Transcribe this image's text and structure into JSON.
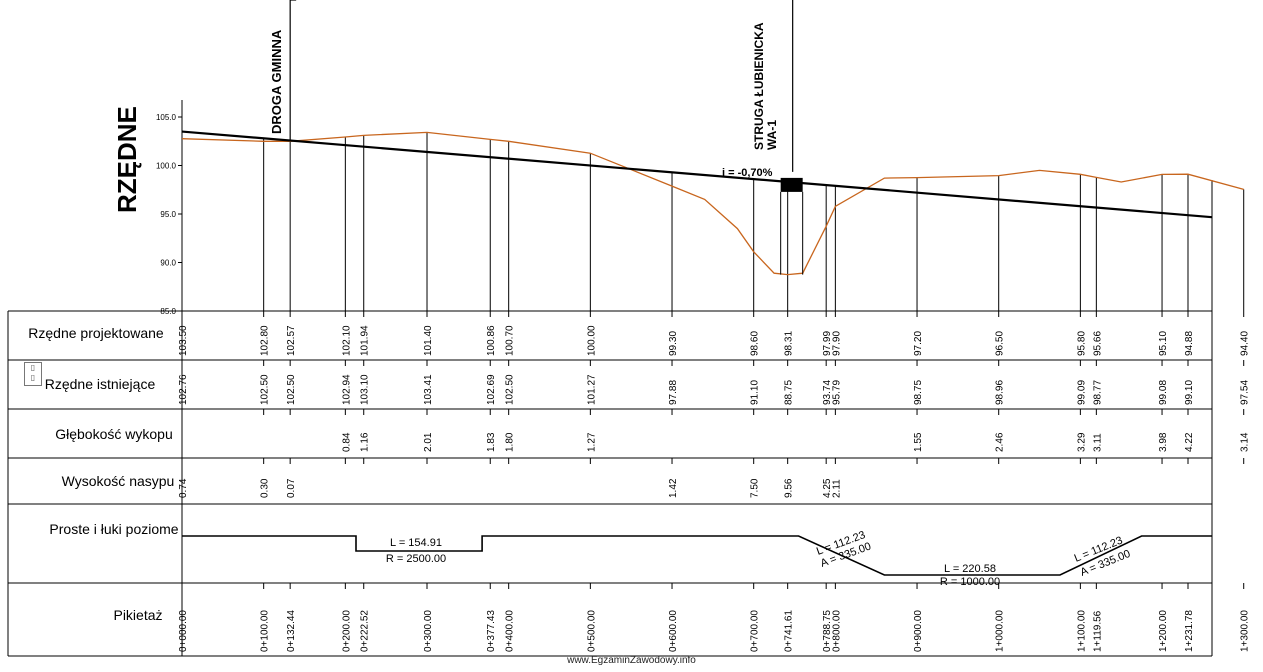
{
  "ylabel": "RZĘDNE",
  "y_ticks": [
    "105.0",
    "100.0",
    "95.0",
    "90.0",
    "85.0"
  ],
  "landmarks": {
    "road": "DROGA GMINNA",
    "stream": "STRUGA ŁUBIENICKA",
    "culvert": "WA-1"
  },
  "slope_label": "i = -0,70%",
  "rows": {
    "projected": "Rzędne projektowane",
    "existing": "Rzędne istniejące",
    "cut": "Głębokość wykopu",
    "fill": "Wysokość nasypu",
    "alignment": "Proste i łuki poziome",
    "chainage": "Pikietaż"
  },
  "stations": [
    "0+000.00",
    "0+100.00",
    "0+132.44",
    "0+200.00",
    "0+222.52",
    "0+300.00",
    "0+377.43",
    "0+400.00",
    "0+500.00",
    "0+600.00",
    "0+700.00",
    "0+741.61",
    "0+788.75",
    "0+800.00",
    "0+900.00",
    "1+000.00",
    "1+100.00",
    "1+119.56",
    "1+200.00",
    "1+231.78",
    "1+300.00"
  ],
  "projected_values": [
    "103.50",
    "102.80",
    "102.57",
    "102.10",
    "101.94",
    "101.40",
    "100.86",
    "100.70",
    "100.00",
    "99.30",
    "98.60",
    "98.31",
    "97.99",
    "97.90",
    "97.20",
    "96.50",
    "95.80",
    "95.66",
    "95.10",
    "94.88",
    "94.40"
  ],
  "existing_values": [
    "102.76",
    "102.50",
    "102.50",
    "102.94",
    "103.10",
    "103.41",
    "102.69",
    "102.50",
    "101.27",
    "97.88",
    "91.10",
    "88.75",
    "93.74",
    "95.79",
    "98.75",
    "98.96",
    "99.09",
    "98.77",
    "99.08",
    "99.10",
    "97.54"
  ],
  "cut_values": [
    "",
    "",
    "",
    "0.84",
    "1.16",
    "2.01",
    "1.83",
    "1.80",
    "1.27",
    "",
    "",
    "",
    "",
    "",
    "1.55",
    "2.46",
    "3.29",
    "3.11",
    "3.98",
    "4.22",
    "3.14"
  ],
  "fill_values": [
    "0.74",
    "0.30",
    "0.07",
    "",
    "",
    "",
    "",
    "",
    "",
    "1.42",
    "7.50",
    "9.56",
    "4.25",
    "2.11",
    "",
    "",
    "",
    "",
    "",
    "",
    ""
  ],
  "alignment_labels": {
    "arc1_L": "L = 154.91",
    "arc1_R": "R = 2500.00",
    "clothoid1_L": "L = 112.23",
    "clothoid1_A": "A = 335.00",
    "arc2_L": "L = 220.58",
    "arc2_R": "R = 1000.00",
    "clothoid2_L": "L = 112.23",
    "clothoid2_A": "A = 335.00"
  },
  "watermark": "www.EgzaminZawodowy.info",
  "colors": {
    "ground_line": "#c8661e",
    "design_line": "#000000",
    "grid_line": "#000000"
  }
}
